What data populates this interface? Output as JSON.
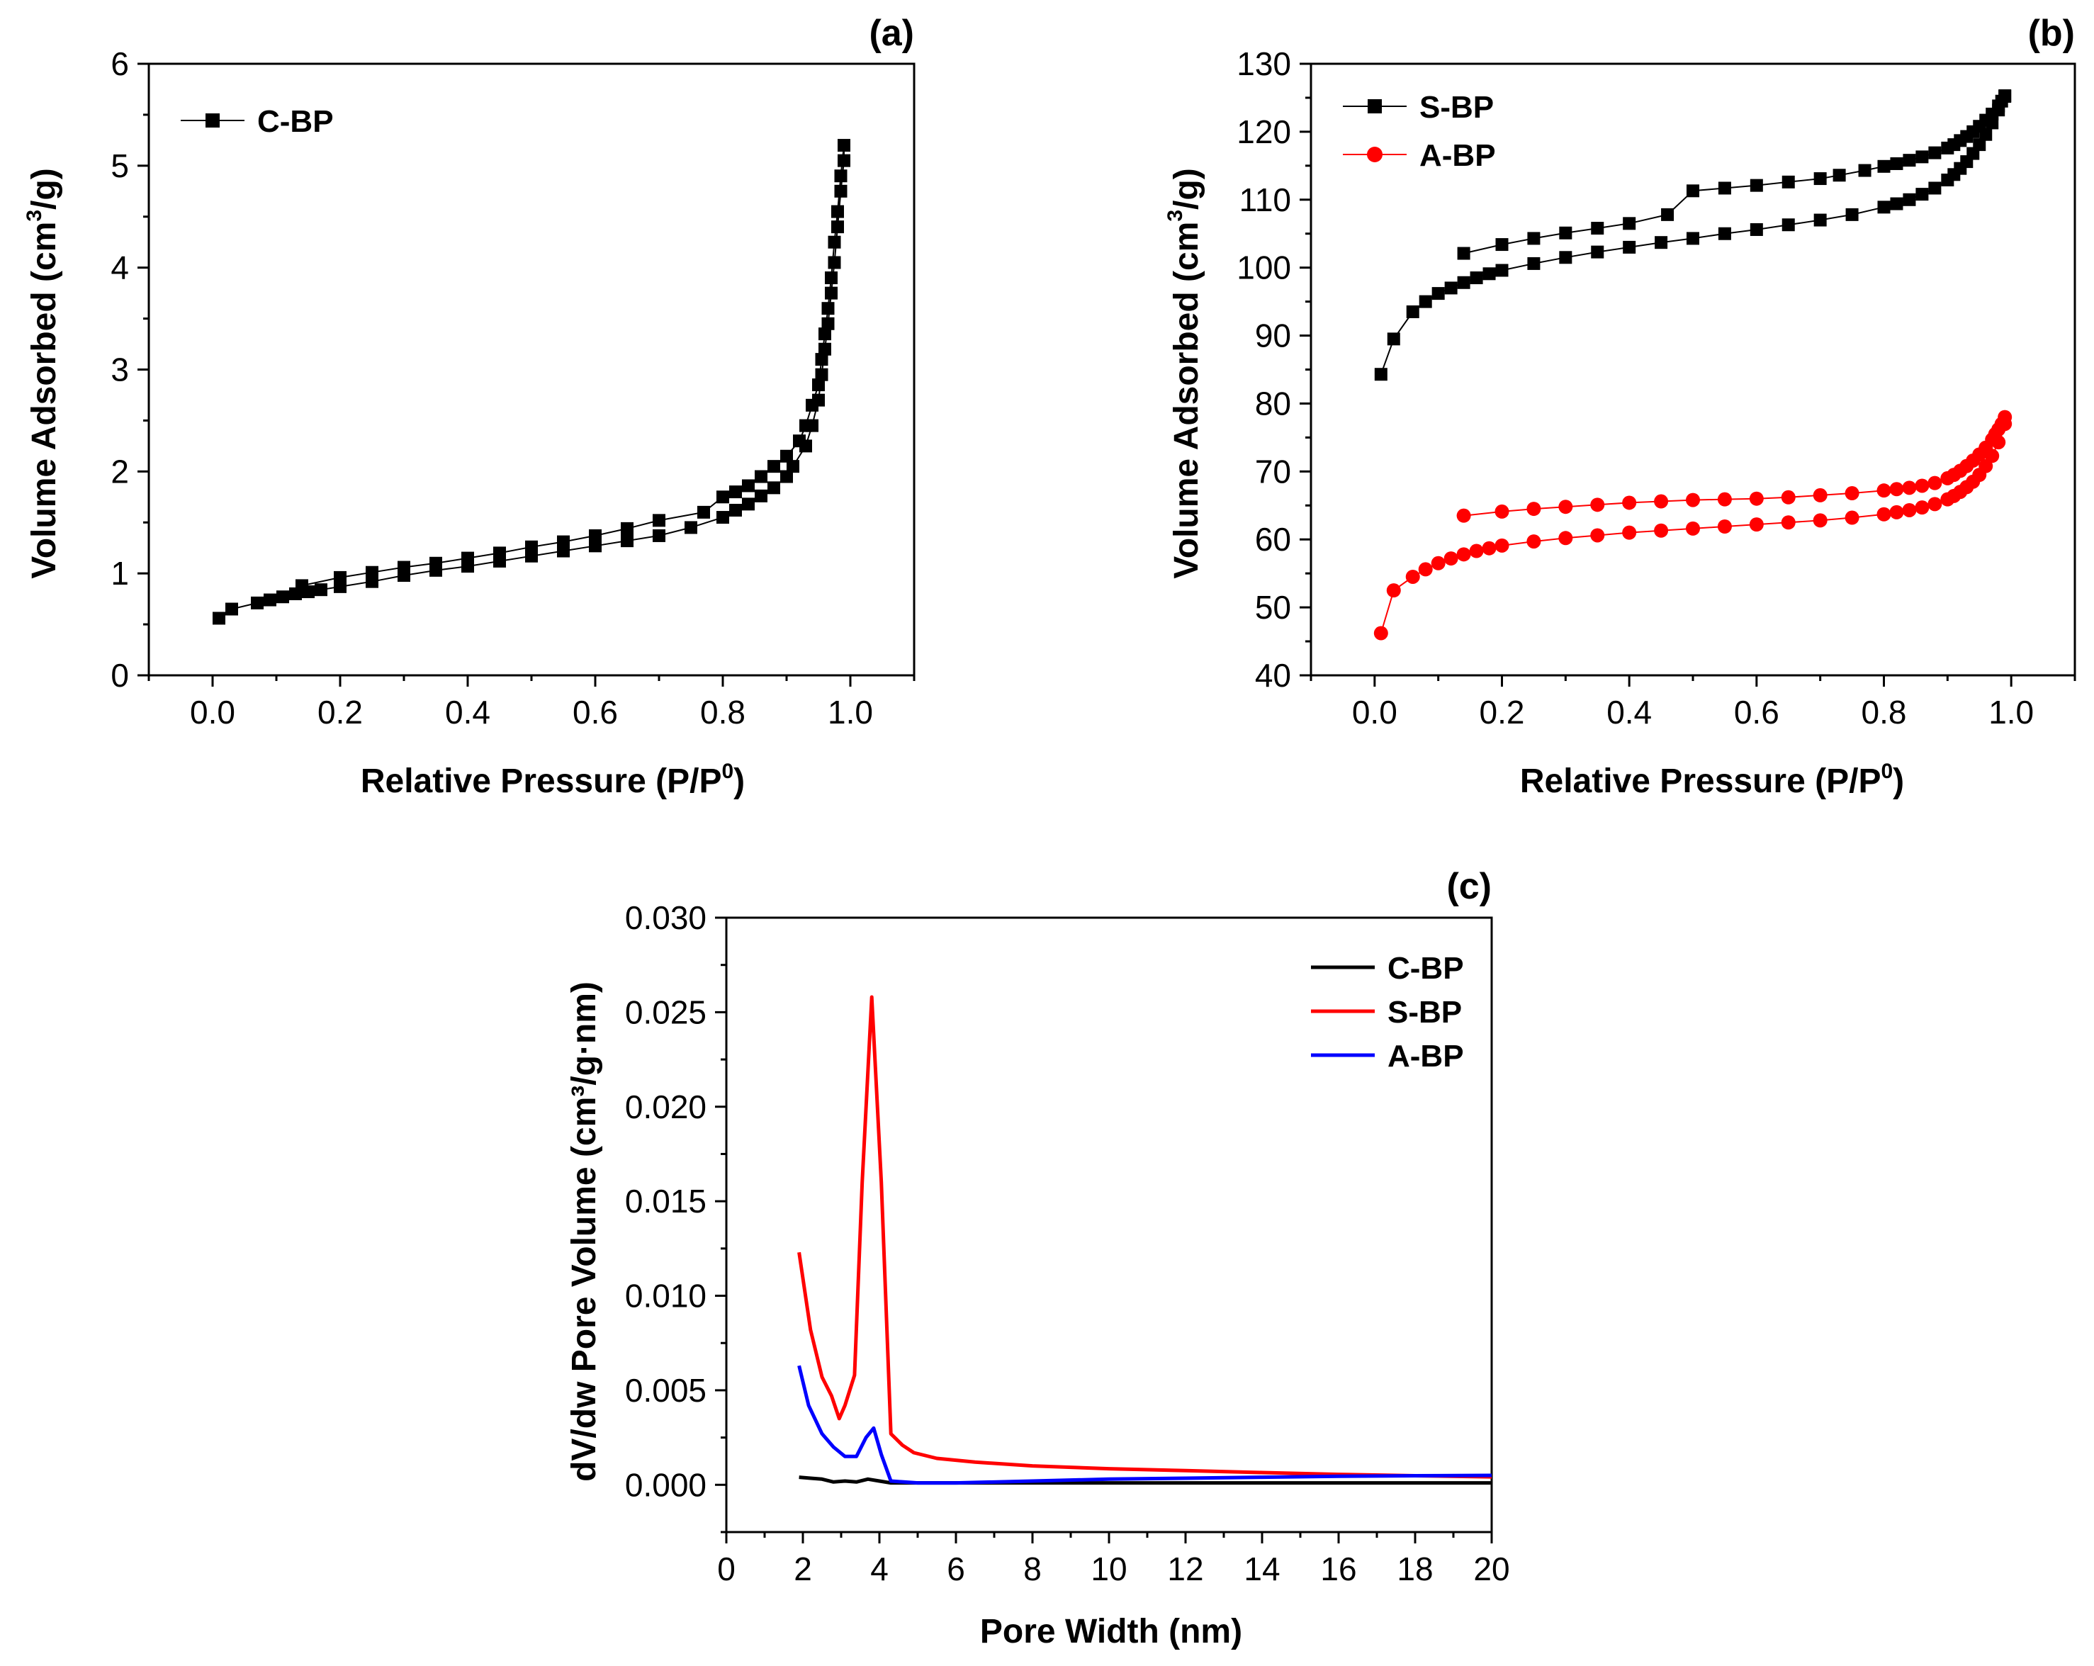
{
  "colors": {
    "black": "#000000",
    "red": "#ff0000",
    "blue": "#0000ff"
  },
  "chart_data": [
    {
      "id": "a",
      "panel_label": "(a)",
      "type": "scatter",
      "xlabel": "Relative Pressure (P/P",
      "xlabel_sup": "0",
      "xlabel_tail": ")",
      "ylabel": "Volume Adsorbed (cm",
      "ylabel_sup": "3",
      "ylabel_tail": "/g)",
      "xlim": [
        -0.1,
        1.1
      ],
      "ylim": [
        0,
        6
      ],
      "xticks": [
        0.0,
        0.2,
        0.4,
        0.6,
        0.8,
        1.0
      ],
      "xtick_labels": [
        "0.0",
        "0.2",
        "0.4",
        "0.6",
        "0.8",
        "1.0"
      ],
      "yticks": [
        0,
        1,
        2,
        3,
        4,
        5,
        6
      ],
      "ytick_labels": [
        "0",
        "1",
        "2",
        "3",
        "4",
        "5",
        "6"
      ],
      "legend": [
        "C-BP"
      ],
      "series": [
        {
          "name": "C-BP",
          "color": "#000000",
          "marker": "square",
          "x": [
            0.01,
            0.03,
            0.07,
            0.09,
            0.11,
            0.13,
            0.15,
            0.17,
            0.2,
            0.25,
            0.3,
            0.35,
            0.4,
            0.45,
            0.5,
            0.55,
            0.6,
            0.65,
            0.7,
            0.75,
            0.8,
            0.82,
            0.84,
            0.86,
            0.88,
            0.9,
            0.91,
            0.93,
            0.94,
            0.95,
            0.955,
            0.96,
            0.965,
            0.97,
            0.975,
            0.98,
            0.985,
            0.99,
            0.99,
            0.985,
            0.98,
            0.975,
            0.97,
            0.965,
            0.96,
            0.955,
            0.95,
            0.94,
            0.93,
            0.92,
            0.9,
            0.88,
            0.86,
            0.84,
            0.82,
            0.8,
            0.77,
            0.7,
            0.65,
            0.6,
            0.55,
            0.5,
            0.45,
            0.4,
            0.35,
            0.3,
            0.25,
            0.2,
            0.14
          ],
          "y": [
            0.56,
            0.65,
            0.71,
            0.74,
            0.77,
            0.8,
            0.82,
            0.84,
            0.87,
            0.92,
            0.98,
            1.03,
            1.07,
            1.12,
            1.17,
            1.22,
            1.27,
            1.32,
            1.37,
            1.45,
            1.55,
            1.62,
            1.68,
            1.76,
            1.84,
            1.95,
            2.05,
            2.25,
            2.45,
            2.7,
            2.95,
            3.2,
            3.45,
            3.75,
            4.05,
            4.4,
            4.75,
            5.05,
            5.2,
            4.9,
            4.55,
            4.25,
            3.9,
            3.6,
            3.35,
            3.1,
            2.85,
            2.65,
            2.45,
            2.3,
            2.15,
            2.05,
            1.95,
            1.86,
            1.8,
            1.75,
            1.6,
            1.52,
            1.44,
            1.37,
            1.31,
            1.26,
            1.2,
            1.15,
            1.1,
            1.06,
            1.01,
            0.96,
            0.88
          ]
        }
      ]
    },
    {
      "id": "b",
      "panel_label": "(b)",
      "type": "scatter",
      "xlabel": "Relative Pressure (P/P",
      "xlabel_sup": "0",
      "xlabel_tail": ")",
      "ylabel": "Volume Adsorbed (cm",
      "ylabel_sup": "3",
      "ylabel_tail": "/g)",
      "xlim": [
        -0.1,
        1.1
      ],
      "ylim": [
        40,
        130
      ],
      "xticks": [
        0.0,
        0.2,
        0.4,
        0.6,
        0.8,
        1.0
      ],
      "xtick_labels": [
        "0.0",
        "0.2",
        "0.4",
        "0.6",
        "0.8",
        "1.0"
      ],
      "yticks": [
        40,
        50,
        60,
        70,
        80,
        90,
        100,
        110,
        120,
        130
      ],
      "ytick_labels": [
        "40",
        "50",
        "60",
        "70",
        "80",
        "90",
        "100",
        "110",
        "120",
        "130"
      ],
      "legend": [
        "S-BP",
        "A-BP"
      ],
      "series": [
        {
          "name": "S-BP",
          "color": "#000000",
          "marker": "square",
          "x": [
            0.01,
            0.03,
            0.06,
            0.08,
            0.1,
            0.12,
            0.14,
            0.16,
            0.18,
            0.2,
            0.25,
            0.3,
            0.35,
            0.4,
            0.45,
            0.5,
            0.55,
            0.6,
            0.65,
            0.7,
            0.75,
            0.8,
            0.82,
            0.84,
            0.86,
            0.88,
            0.9,
            0.91,
            0.92,
            0.93,
            0.94,
            0.95,
            0.96,
            0.97,
            0.98,
            0.99,
            0.99,
            0.985,
            0.98,
            0.97,
            0.96,
            0.95,
            0.94,
            0.93,
            0.92,
            0.91,
            0.9,
            0.88,
            0.86,
            0.84,
            0.82,
            0.8,
            0.77,
            0.73,
            0.7,
            0.65,
            0.6,
            0.55,
            0.5,
            0.46,
            0.4,
            0.35,
            0.3,
            0.25,
            0.2,
            0.14
          ],
          "y": [
            84.3,
            89.5,
            93.5,
            95.0,
            96.2,
            97.0,
            97.8,
            98.5,
            99.1,
            99.6,
            100.6,
            101.5,
            102.3,
            103.0,
            103.7,
            104.3,
            105.0,
            105.6,
            106.3,
            107.0,
            107.8,
            108.9,
            109.4,
            110.0,
            110.8,
            111.7,
            112.9,
            113.7,
            114.6,
            115.6,
            116.8,
            118.1,
            119.6,
            121.3,
            123.2,
            125.2,
            125.3,
            124.5,
            123.8,
            122.6,
            121.7,
            120.8,
            120.0,
            119.3,
            118.7,
            118.1,
            117.6,
            116.9,
            116.3,
            115.8,
            115.3,
            114.9,
            114.3,
            113.6,
            113.1,
            112.6,
            112.1,
            111.7,
            111.3,
            107.8,
            106.5,
            105.8,
            105.1,
            104.3,
            103.4,
            102.1
          ]
        },
        {
          "name": "A-BP",
          "color": "#ff0000",
          "marker": "circle",
          "x": [
            0.01,
            0.03,
            0.06,
            0.08,
            0.1,
            0.12,
            0.14,
            0.16,
            0.18,
            0.2,
            0.25,
            0.3,
            0.35,
            0.4,
            0.45,
            0.5,
            0.55,
            0.6,
            0.65,
            0.7,
            0.75,
            0.8,
            0.82,
            0.84,
            0.86,
            0.88,
            0.9,
            0.91,
            0.92,
            0.93,
            0.94,
            0.95,
            0.96,
            0.97,
            0.98,
            0.99,
            0.99,
            0.985,
            0.98,
            0.975,
            0.97,
            0.96,
            0.95,
            0.94,
            0.93,
            0.92,
            0.91,
            0.9,
            0.88,
            0.86,
            0.84,
            0.82,
            0.8,
            0.75,
            0.7,
            0.65,
            0.6,
            0.55,
            0.5,
            0.45,
            0.4,
            0.35,
            0.3,
            0.25,
            0.2,
            0.14
          ],
          "y": [
            46.2,
            52.5,
            54.5,
            55.6,
            56.5,
            57.2,
            57.8,
            58.3,
            58.7,
            59.1,
            59.7,
            60.2,
            60.6,
            61.0,
            61.3,
            61.6,
            61.9,
            62.2,
            62.5,
            62.8,
            63.2,
            63.7,
            64.0,
            64.3,
            64.7,
            65.2,
            65.9,
            66.4,
            67.0,
            67.7,
            68.5,
            69.5,
            70.8,
            72.3,
            74.3,
            77.0,
            78.0,
            77.0,
            76.2,
            75.5,
            74.7,
            73.5,
            72.5,
            71.6,
            70.8,
            70.1,
            69.5,
            69.0,
            68.3,
            67.9,
            67.6,
            67.4,
            67.2,
            66.8,
            66.5,
            66.2,
            66.0,
            65.9,
            65.8,
            65.6,
            65.4,
            65.1,
            64.8,
            64.5,
            64.1,
            63.5
          ]
        }
      ]
    },
    {
      "id": "c",
      "panel_label": "(c)",
      "type": "line",
      "xlabel": "Pore Width (nm)",
      "ylabel": "dV/dw Pore Volume (cm³/g·nm)",
      "xlim": [
        0,
        20
      ],
      "ylim": [
        -0.0025,
        0.03
      ],
      "xticks": [
        0,
        2,
        4,
        6,
        8,
        10,
        12,
        14,
        16,
        18,
        20
      ],
      "xtick_labels": [
        "0",
        "2",
        "4",
        "6",
        "8",
        "10",
        "12",
        "14",
        "16",
        "18",
        "20"
      ],
      "yticks": [
        0.0,
        0.005,
        0.01,
        0.015,
        0.02,
        0.025,
        0.03
      ],
      "ytick_labels": [
        "0.000",
        "0.005",
        "0.010",
        "0.015",
        "0.020",
        "0.025",
        "0.030"
      ],
      "legend": [
        "C-BP",
        "S-BP",
        "A-BP"
      ],
      "series": [
        {
          "name": "C-BP",
          "color": "#000000",
          "x": [
            1.9,
            2.2,
            2.5,
            2.8,
            3.1,
            3.4,
            3.7,
            4.0,
            4.3,
            5,
            6,
            8,
            10,
            12,
            14,
            16,
            18,
            20
          ],
          "y": [
            0.0004,
            0.00035,
            0.0003,
            0.00015,
            0.0002,
            0.00015,
            0.0003,
            0.0002,
            0.0001,
            0.0001,
            0.0001,
            0.0001,
            0.0001,
            0.0001,
            0.0001,
            0.0001,
            0.0001,
            0.0001
          ]
        },
        {
          "name": "S-BP",
          "color": "#ff0000",
          "x": [
            1.9,
            2.2,
            2.5,
            2.75,
            2.95,
            3.1,
            3.35,
            3.55,
            3.8,
            4.05,
            4.3,
            4.6,
            4.9,
            5.5,
            6.5,
            8,
            10,
            12,
            14,
            16,
            18,
            20
          ],
          "y": [
            0.0123,
            0.0082,
            0.0057,
            0.0047,
            0.0035,
            0.0042,
            0.0058,
            0.016,
            0.0258,
            0.016,
            0.0027,
            0.0021,
            0.0017,
            0.0014,
            0.0012,
            0.001,
            0.00085,
            0.00075,
            0.00065,
            0.00055,
            0.00048,
            0.00042
          ]
        },
        {
          "name": "A-BP",
          "color": "#0000ff",
          "x": [
            1.9,
            2.15,
            2.5,
            2.8,
            3.1,
            3.4,
            3.65,
            3.85,
            4.05,
            4.3,
            5,
            6,
            8,
            10,
            12,
            14,
            16,
            18,
            20
          ],
          "y": [
            0.0063,
            0.0042,
            0.0027,
            0.002,
            0.0015,
            0.0015,
            0.0025,
            0.003,
            0.0016,
            0.0002,
            0.0001,
            0.0001,
            0.0002,
            0.0003,
            0.00035,
            0.0004,
            0.00045,
            0.00048,
            0.0005
          ]
        }
      ]
    }
  ]
}
